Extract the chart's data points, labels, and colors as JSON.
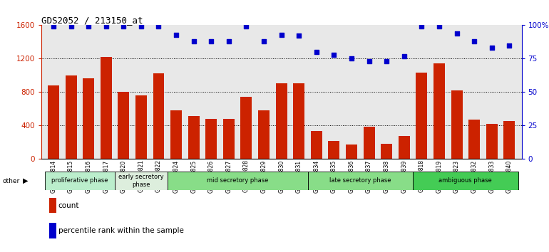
{
  "title": "GDS2052 / 213150_at",
  "samples": [
    "GSM109814",
    "GSM109815",
    "GSM109816",
    "GSM109817",
    "GSM109820",
    "GSM109821",
    "GSM109822",
    "GSM109824",
    "GSM109825",
    "GSM109826",
    "GSM109827",
    "GSM109828",
    "GSM109829",
    "GSM109830",
    "GSM109831",
    "GSM109834",
    "GSM109835",
    "GSM109836",
    "GSM109837",
    "GSM109838",
    "GSM109839",
    "GSM109818",
    "GSM109819",
    "GSM109823",
    "GSM109832",
    "GSM109833",
    "GSM109840"
  ],
  "counts": [
    880,
    1000,
    960,
    1220,
    800,
    760,
    1020,
    580,
    510,
    480,
    480,
    740,
    580,
    900,
    900,
    330,
    210,
    170,
    380,
    175,
    270,
    1030,
    1140,
    820,
    470,
    420,
    450
  ],
  "percentile_ranks": [
    99,
    99,
    99,
    99,
    99,
    99,
    99,
    93,
    88,
    88,
    88,
    99,
    88,
    93,
    92,
    80,
    78,
    75,
    73,
    73,
    77,
    99,
    99,
    94,
    88,
    83,
    85
  ],
  "phase_groups": [
    {
      "label": "proliferative phase",
      "start": 0,
      "end": 4,
      "color": "#bbeecc"
    },
    {
      "label": "early secretory\nphase",
      "start": 4,
      "end": 7,
      "color": "#ddeedd"
    },
    {
      "label": "mid secretory phase",
      "start": 7,
      "end": 15,
      "color": "#88dd88"
    },
    {
      "label": "late secretory phase",
      "start": 15,
      "end": 21,
      "color": "#88dd88"
    },
    {
      "label": "ambiguous phase",
      "start": 21,
      "end": 27,
      "color": "#44cc55"
    }
  ],
  "bar_color": "#cc2200",
  "dot_color": "#0000cc",
  "ylim_left": [
    0,
    1600
  ],
  "ylim_right": [
    0,
    100
  ],
  "yticks_left": [
    0,
    400,
    800,
    1200,
    1600
  ],
  "yticks_right": [
    0,
    25,
    50,
    75,
    100
  ],
  "yticklabels_right": [
    "0",
    "25",
    "50",
    "75",
    "100%"
  ]
}
